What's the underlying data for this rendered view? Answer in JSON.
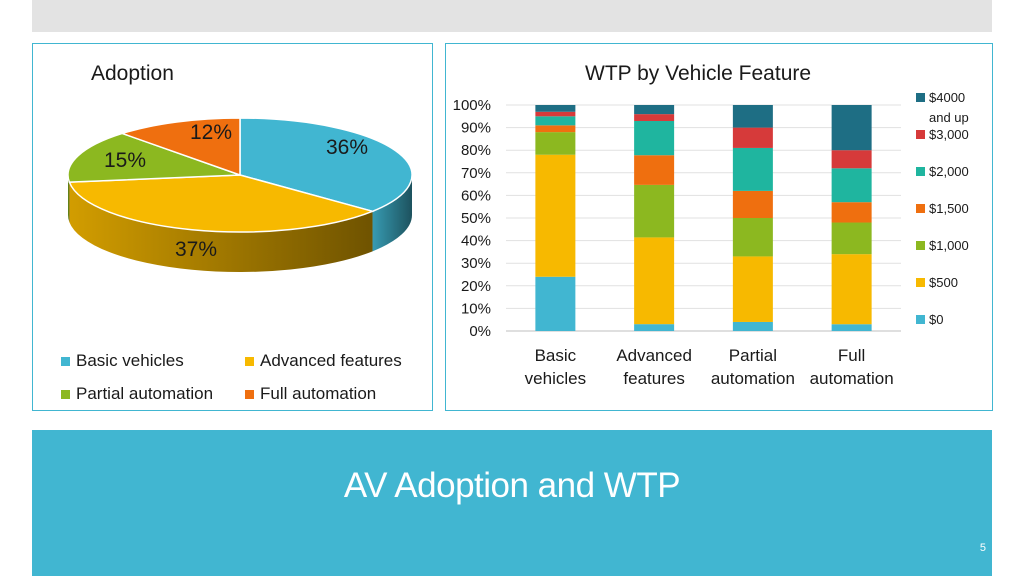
{
  "slide": {
    "title": "AV Adoption and WTP",
    "page_number": "5",
    "colors": {
      "accent": "#41b6d1",
      "header_bar": "#e3e3e3"
    }
  },
  "chart_data": [
    {
      "type": "pie",
      "title": "Adoption",
      "style": "3d",
      "slices": [
        {
          "name": "Basic vehicles",
          "value": 36,
          "label": "36%",
          "color": "#41b6d1"
        },
        {
          "name": "Advanced features",
          "value": 37,
          "label": "37%",
          "color": "#f7b900"
        },
        {
          "name": "Partial automation",
          "value": 15,
          "label": "15%",
          "color": "#8cb820"
        },
        {
          "name": "Full automation",
          "value": 12,
          "label": "12%",
          "color": "#ef6f0f"
        }
      ],
      "legend_placement": "bottom"
    },
    {
      "type": "bar",
      "stacked": "percent",
      "title": "WTP by Vehicle Feature",
      "categories": [
        "Basic vehicles",
        "Advanced features",
        "Partial automation",
        "Full automation"
      ],
      "category_lines": [
        [
          "Basic",
          "vehicles"
        ],
        [
          "Advanced",
          "features"
        ],
        [
          "Partial",
          "automation"
        ],
        [
          "Full",
          "automation"
        ]
      ],
      "series": [
        {
          "name": "$0",
          "color": "#41b6d1",
          "values": [
            24,
            3,
            4,
            3
          ]
        },
        {
          "name": "$500",
          "color": "#f7b900",
          "values": [
            54,
            38,
            29,
            31
          ]
        },
        {
          "name": "$1,000",
          "color": "#8cb820",
          "values": [
            10,
            23,
            17,
            14
          ]
        },
        {
          "name": "$1,500",
          "color": "#ef6f0f",
          "values": [
            3,
            13,
            12,
            9
          ]
        },
        {
          "name": "$2,000",
          "color": "#1fb59f",
          "values": [
            4,
            15,
            19,
            15
          ]
        },
        {
          "name": "$3,000",
          "color": "#d63a3a",
          "values": [
            2,
            3,
            9,
            8
          ]
        },
        {
          "name": "$4000 and up",
          "color": "#1e6e84",
          "values": [
            3,
            4,
            10,
            20
          ],
          "label_lines": [
            "$4000",
            "and up"
          ]
        }
      ],
      "ylim": [
        0,
        100
      ],
      "yticks": [
        "0%",
        "10%",
        "20%",
        "30%",
        "40%",
        "50%",
        "60%",
        "70%",
        "80%",
        "90%",
        "100%"
      ],
      "grid": true,
      "legend_placement": "right"
    }
  ]
}
